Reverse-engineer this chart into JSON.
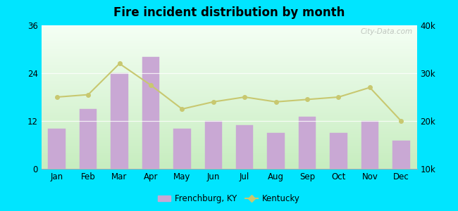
{
  "title": "Fire incident distribution by month",
  "months": [
    "Jan",
    "Feb",
    "Mar",
    "Apr",
    "May",
    "Jun",
    "Jul",
    "Aug",
    "Sep",
    "Oct",
    "Nov",
    "Dec"
  ],
  "frenchburg_values": [
    10,
    15,
    24,
    28,
    10,
    12,
    11,
    9,
    13,
    9,
    12,
    7
  ],
  "kentucky_values": [
    25000,
    25500,
    32000,
    27500,
    22500,
    24000,
    25000,
    24000,
    24500,
    25000,
    27000,
    20000
  ],
  "bar_color": "#c9a8d4",
  "bar_edge_color": "#c9a8d4",
  "line_color": "#c8c870",
  "left_ylim": [
    0,
    36
  ],
  "left_yticks": [
    0,
    12,
    24,
    36
  ],
  "right_ylim": [
    10000,
    40000
  ],
  "right_yticks": [
    10000,
    20000,
    30000,
    40000
  ],
  "right_yticklabels": [
    "10k",
    "20k",
    "30k",
    "40k"
  ],
  "outer_bg": "#00e5ff",
  "legend_frenchburg": "Frenchburg, KY",
  "legend_kentucky": "Kentucky",
  "watermark": "City-Data.com",
  "gradient_top": "#f5fff5",
  "gradient_bottom": "#c8eec0"
}
